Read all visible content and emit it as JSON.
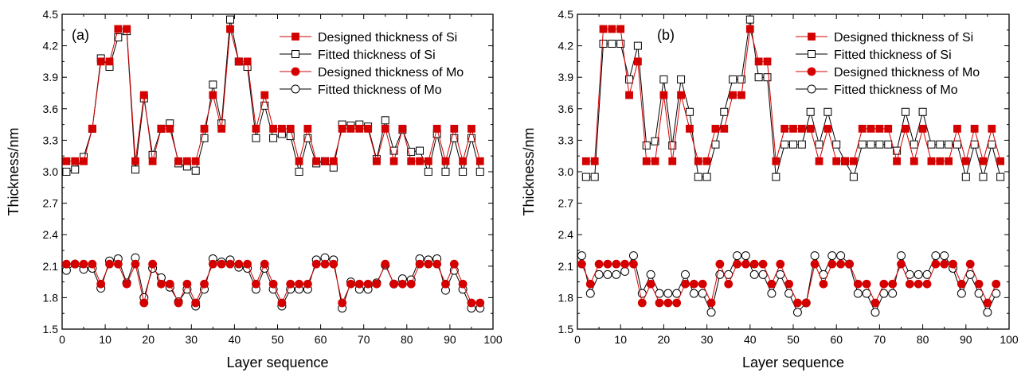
{
  "chart_data": [
    {
      "type": "line",
      "panel_label": "(a)",
      "xlabel": "Layer sequence",
      "ylabel": "Thickness/nm",
      "xlim": [
        0,
        100
      ],
      "ylim": [
        1.5,
        4.5
      ],
      "xticks": [
        "0",
        "10",
        "20",
        "30",
        "40",
        "50",
        "60",
        "70",
        "80",
        "90",
        "100"
      ],
      "yticks": [
        "1.5",
        "1.8",
        "2.1",
        "2.4",
        "2.7",
        "3.0",
        "3.3",
        "3.6",
        "3.9",
        "4.2",
        "4.5"
      ],
      "grid": false,
      "legend_position": "top-right",
      "series": [
        {
          "name": "Designed thickness of Si",
          "marker": "filled-square",
          "color": "#d40000",
          "x": [
            1,
            3,
            5,
            7,
            9,
            11,
            13,
            15,
            17,
            19,
            21,
            23,
            25,
            27,
            29,
            31,
            33,
            35,
            37,
            39,
            41,
            43,
            45,
            47,
            49,
            51,
            53,
            55,
            57,
            59,
            61,
            63,
            65,
            67,
            69,
            71,
            73,
            75,
            77,
            79,
            81,
            83,
            85,
            87,
            89,
            91,
            93,
            95,
            97
          ],
          "y": [
            3.1,
            3.1,
            3.1,
            3.41,
            4.05,
            4.05,
            4.36,
            4.36,
            3.1,
            3.73,
            3.1,
            3.41,
            3.41,
            3.1,
            3.1,
            3.1,
            3.41,
            3.73,
            3.41,
            4.36,
            4.05,
            4.05,
            3.41,
            3.73,
            3.41,
            3.41,
            3.41,
            3.1,
            3.41,
            3.1,
            3.1,
            3.1,
            3.41,
            3.41,
            3.41,
            3.41,
            3.1,
            3.41,
            3.1,
            3.41,
            3.1,
            3.1,
            3.1,
            3.41,
            3.1,
            3.41,
            3.1,
            3.41,
            3.1
          ]
        },
        {
          "name": "Fitted thickness of Si",
          "marker": "open-square",
          "color": "#000000",
          "x": [
            1,
            3,
            5,
            7,
            9,
            11,
            13,
            15,
            17,
            19,
            21,
            23,
            25,
            27,
            29,
            31,
            33,
            35,
            37,
            39,
            41,
            43,
            45,
            47,
            49,
            51,
            53,
            55,
            57,
            59,
            61,
            63,
            65,
            67,
            69,
            71,
            73,
            75,
            77,
            79,
            81,
            83,
            85,
            87,
            89,
            91,
            93,
            95,
            97
          ],
          "y": [
            3.0,
            3.02,
            3.14,
            3.41,
            4.08,
            4.0,
            4.28,
            4.34,
            3.02,
            3.7,
            3.16,
            3.41,
            3.46,
            3.08,
            3.05,
            3.01,
            3.32,
            3.83,
            3.46,
            4.45,
            4.05,
            4.0,
            3.32,
            3.63,
            3.32,
            3.36,
            3.34,
            3.0,
            3.32,
            3.08,
            3.1,
            3.04,
            3.45,
            3.44,
            3.45,
            3.43,
            3.12,
            3.49,
            3.2,
            3.4,
            3.19,
            3.2,
            3.0,
            3.36,
            3.0,
            3.32,
            3.0,
            3.32,
            3.0
          ]
        },
        {
          "name": "Designed thickness of Mo",
          "marker": "filled-circle",
          "color": "#d40000",
          "x": [
            1,
            3,
            5,
            7,
            9,
            11,
            13,
            15,
            17,
            19,
            21,
            23,
            25,
            27,
            29,
            31,
            33,
            35,
            37,
            39,
            41,
            43,
            45,
            47,
            49,
            51,
            53,
            55,
            57,
            59,
            61,
            63,
            65,
            67,
            69,
            71,
            73,
            75,
            77,
            79,
            81,
            83,
            85,
            87,
            89,
            91,
            93,
            95,
            97
          ],
          "y": [
            2.12,
            2.12,
            2.12,
            2.12,
            1.93,
            2.12,
            2.12,
            1.93,
            2.12,
            1.75,
            2.12,
            1.93,
            1.93,
            1.75,
            1.93,
            1.75,
            1.93,
            2.12,
            2.12,
            2.12,
            2.12,
            2.12,
            1.93,
            2.12,
            1.93,
            1.75,
            1.93,
            1.93,
            1.93,
            2.12,
            2.12,
            2.12,
            1.75,
            1.93,
            1.93,
            1.93,
            1.93,
            2.12,
            1.93,
            1.93,
            1.93,
            2.12,
            2.12,
            2.12,
            1.93,
            2.12,
            1.93,
            1.75,
            1.75
          ]
        },
        {
          "name": "Fitted thickness of Mo",
          "marker": "open-circle",
          "color": "#000000",
          "x": [
            1,
            3,
            5,
            7,
            9,
            11,
            13,
            15,
            17,
            19,
            21,
            23,
            25,
            27,
            29,
            31,
            33,
            35,
            37,
            39,
            41,
            43,
            45,
            47,
            49,
            51,
            53,
            55,
            57,
            59,
            61,
            63,
            65,
            67,
            69,
            71,
            73,
            75,
            77,
            79,
            81,
            83,
            85,
            87,
            89,
            91,
            93,
            95,
            97
          ],
          "y": [
            2.06,
            2.12,
            2.07,
            2.08,
            1.89,
            2.15,
            2.17,
            1.94,
            2.18,
            1.8,
            2.08,
            1.99,
            1.9,
            1.76,
            1.88,
            1.72,
            1.88,
            2.17,
            2.14,
            2.16,
            2.09,
            2.08,
            1.88,
            2.08,
            1.88,
            1.72,
            1.88,
            1.88,
            1.88,
            2.16,
            2.18,
            2.16,
            1.7,
            1.95,
            1.88,
            1.88,
            1.94,
            2.11,
            1.93,
            1.98,
            1.97,
            2.17,
            2.16,
            2.17,
            1.87,
            2.06,
            1.88,
            1.7,
            1.7
          ]
        }
      ]
    },
    {
      "type": "line",
      "panel_label": "(b)",
      "xlabel": "Layer sequence",
      "ylabel": "Thickness/nm",
      "xlim": [
        0,
        100
      ],
      "ylim": [
        1.5,
        4.5
      ],
      "xticks": [
        "0",
        "10",
        "20",
        "30",
        "40",
        "50",
        "60",
        "70",
        "80",
        "90",
        "100"
      ],
      "yticks": [
        "1.5",
        "1.8",
        "2.1",
        "2.4",
        "2.7",
        "3.0",
        "3.3",
        "3.6",
        "3.9",
        "4.2",
        "4.5"
      ],
      "grid": false,
      "legend_position": "top-right",
      "series": [
        {
          "name": "Designed thickness of Si",
          "marker": "filled-square",
          "color": "#d40000",
          "x": [
            2,
            4,
            6,
            8,
            10,
            12,
            14,
            16,
            18,
            20,
            22,
            24,
            26,
            28,
            30,
            32,
            34,
            36,
            38,
            40,
            42,
            44,
            46,
            48,
            50,
            52,
            54,
            56,
            58,
            60,
            62,
            64,
            66,
            68,
            70,
            72,
            74,
            76,
            78,
            80,
            82,
            84,
            86,
            88,
            90,
            92,
            94,
            96,
            98
          ],
          "y": [
            3.1,
            3.1,
            4.36,
            4.36,
            4.36,
            3.73,
            4.05,
            3.1,
            3.1,
            3.73,
            3.1,
            3.73,
            3.41,
            3.1,
            3.1,
            3.41,
            3.41,
            3.73,
            3.73,
            4.36,
            4.05,
            4.05,
            3.1,
            3.41,
            3.41,
            3.41,
            3.41,
            3.1,
            3.41,
            3.1,
            3.1,
            3.1,
            3.41,
            3.41,
            3.41,
            3.41,
            3.1,
            3.41,
            3.1,
            3.41,
            3.1,
            3.1,
            3.1,
            3.41,
            3.1,
            3.41,
            3.1,
            3.41,
            3.1
          ]
        },
        {
          "name": "Fitted thickness of Si",
          "marker": "open-square",
          "color": "#000000",
          "x": [
            2,
            4,
            6,
            8,
            10,
            12,
            14,
            16,
            18,
            20,
            22,
            24,
            26,
            28,
            30,
            32,
            34,
            36,
            38,
            40,
            42,
            44,
            46,
            48,
            50,
            52,
            54,
            56,
            58,
            60,
            62,
            64,
            66,
            68,
            70,
            72,
            74,
            76,
            78,
            80,
            82,
            84,
            86,
            88,
            90,
            92,
            94,
            96,
            98
          ],
          "y": [
            2.95,
            2.95,
            4.22,
            4.22,
            4.22,
            3.88,
            4.2,
            3.25,
            3.29,
            3.88,
            3.25,
            3.88,
            3.57,
            2.95,
            2.95,
            3.26,
            3.57,
            3.88,
            3.88,
            4.45,
            3.9,
            3.9,
            2.95,
            3.26,
            3.26,
            3.26,
            3.57,
            3.26,
            3.57,
            3.26,
            3.1,
            2.95,
            3.26,
            3.26,
            3.26,
            3.26,
            3.2,
            3.57,
            3.26,
            3.57,
            3.26,
            3.26,
            3.26,
            3.26,
            2.95,
            3.26,
            2.95,
            3.26,
            2.95
          ]
        },
        {
          "name": "Designed thickness of Mo",
          "marker": "filled-circle",
          "color": "#d40000",
          "x": [
            1,
            3,
            5,
            7,
            9,
            11,
            13,
            15,
            17,
            19,
            21,
            23,
            25,
            27,
            29,
            31,
            33,
            35,
            37,
            39,
            41,
            43,
            45,
            47,
            49,
            51,
            53,
            55,
            57,
            59,
            61,
            63,
            65,
            67,
            69,
            71,
            73,
            75,
            77,
            79,
            81,
            83,
            85,
            87,
            89,
            91,
            93,
            95,
            97
          ],
          "y": [
            2.12,
            1.93,
            2.12,
            2.12,
            2.12,
            2.12,
            2.12,
            1.75,
            1.93,
            1.75,
            1.75,
            1.75,
            1.93,
            1.93,
            1.93,
            1.75,
            2.12,
            1.93,
            2.12,
            2.12,
            2.12,
            2.12,
            1.93,
            2.12,
            1.93,
            1.75,
            1.75,
            2.12,
            1.93,
            2.12,
            2.12,
            2.12,
            1.93,
            1.93,
            1.75,
            1.93,
            1.93,
            2.12,
            1.93,
            1.93,
            1.93,
            2.12,
            2.12,
            2.12,
            1.93,
            2.12,
            1.93,
            1.75,
            1.93
          ]
        },
        {
          "name": "Fitted thickness of Mo",
          "marker": "open-circle",
          "color": "#000000",
          "x": [
            1,
            3,
            5,
            7,
            9,
            11,
            13,
            15,
            17,
            19,
            21,
            23,
            25,
            27,
            29,
            31,
            33,
            35,
            37,
            39,
            41,
            43,
            45,
            47,
            49,
            51,
            53,
            55,
            57,
            59,
            61,
            63,
            65,
            67,
            69,
            71,
            73,
            75,
            77,
            79,
            81,
            83,
            85,
            87,
            89,
            91,
            93,
            95,
            97
          ],
          "y": [
            2.2,
            1.84,
            2.02,
            2.02,
            2.02,
            2.05,
            2.2,
            1.84,
            2.02,
            1.84,
            1.84,
            1.84,
            2.02,
            1.84,
            1.84,
            1.66,
            2.02,
            2.02,
            2.2,
            2.2,
            2.02,
            2.02,
            1.84,
            2.02,
            1.84,
            1.66,
            1.75,
            2.2,
            2.02,
            2.2,
            2.2,
            2.12,
            1.84,
            1.84,
            1.66,
            1.84,
            1.84,
            2.2,
            2.02,
            2.02,
            2.02,
            2.2,
            2.2,
            2.08,
            1.84,
            2.02,
            1.84,
            1.66,
            1.84
          ]
        }
      ]
    }
  ]
}
